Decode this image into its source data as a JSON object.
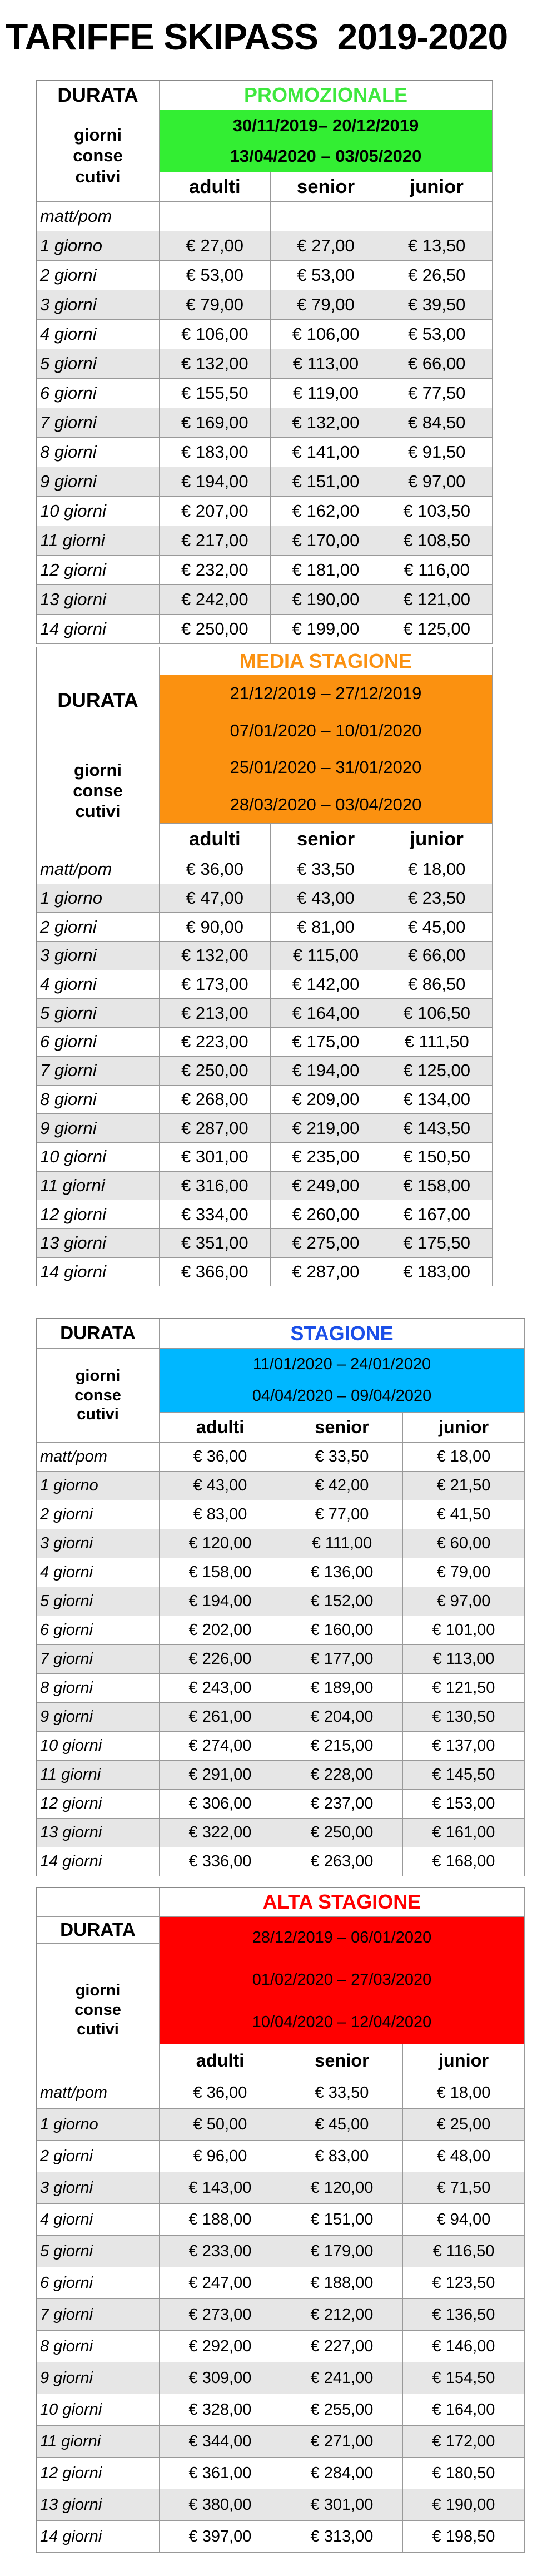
{
  "title": "TARIFFE SKIPASS  2019-2020",
  "common": {
    "durata": "DURATA",
    "giorni": [
      "giorni",
      "conse",
      "cutivi"
    ],
    "columns": [
      "adulti",
      "senior",
      "junior"
    ]
  },
  "tables": [
    {
      "season": "PROMOZIONALE",
      "color": "#33ee33",
      "season_color": "#3ee83e",
      "dates": [
        "30/11/2019– 20/12/2019",
        "13/04/2020 – 03/05/2020"
      ],
      "rows": [
        [
          "matt/pom",
          "",
          "",
          ""
        ],
        [
          "1 giorno",
          "€ 27,00",
          "€ 27,00",
          "€ 13,50"
        ],
        [
          "2 giorni",
          "€ 53,00",
          "€ 53,00",
          "€ 26,50"
        ],
        [
          "3 giorni",
          "€ 79,00",
          "€ 79,00",
          "€ 39,50"
        ],
        [
          "4 giorni",
          "€ 106,00",
          "€ 106,00",
          "€ 53,00"
        ],
        [
          "5 giorni",
          "€ 132,00",
          "€ 113,00",
          "€ 66,00"
        ],
        [
          "6 giorni",
          "€ 155,50",
          "€ 119,00",
          "€ 77,50"
        ],
        [
          "7 giorni",
          "€ 169,00",
          "€ 132,00",
          "€ 84,50"
        ],
        [
          "8 giorni",
          "€ 183,00",
          "€ 141,00",
          "€ 91,50"
        ],
        [
          "9 giorni",
          "€ 194,00",
          "€ 151,00",
          "€ 97,00"
        ],
        [
          "10 giorni",
          "€ 207,00",
          "€ 162,00",
          "€ 103,50"
        ],
        [
          "11 giorni",
          "€ 217,00",
          "€ 170,00",
          "€ 108,50"
        ],
        [
          "12 giorni",
          "€ 232,00",
          "€ 181,00",
          "€ 116,00"
        ],
        [
          "13 giorni",
          "€ 242,00",
          "€ 190,00",
          "€ 121,00"
        ],
        [
          "14 giorni",
          "€ 250,00",
          "€ 199,00",
          "€ 125,00"
        ]
      ]
    },
    {
      "season": "MEDIA STAGIONE",
      "color": "#fb9110",
      "season_color": "#fb9110",
      "dates": [
        "21/12/2019 – 27/12/2019",
        "07/01/2020 – 10/01/2020",
        "25/01/2020 – 31/01/2020",
        "28/03/2020 – 03/04/2020"
      ],
      "rows": [
        [
          "matt/pom",
          "€ 36,00",
          "€ 33,50",
          "€ 18,00"
        ],
        [
          "1 giorno",
          "€ 47,00",
          "€ 43,00",
          "€ 23,50"
        ],
        [
          "2 giorni",
          "€ 90,00",
          "€ 81,00",
          "€ 45,00"
        ],
        [
          "3 giorni",
          "€ 132,00",
          "€ 115,00",
          "€ 66,00"
        ],
        [
          "4 giorni",
          "€ 173,00",
          "€ 142,00",
          "€ 86,50"
        ],
        [
          "5 giorni",
          "€ 213,00",
          "€ 164,00",
          "€ 106,50"
        ],
        [
          "6 giorni",
          "€ 223,00",
          "€ 175,00",
          "€ 111,50"
        ],
        [
          "7 giorni",
          "€ 250,00",
          "€ 194,00",
          "€ 125,00"
        ],
        [
          "8 giorni",
          "€ 268,00",
          "€ 209,00",
          "€ 134,00"
        ],
        [
          "9 giorni",
          "€ 287,00",
          "€ 219,00",
          "€ 143,50"
        ],
        [
          "10 giorni",
          "€ 301,00",
          "€ 235,00",
          "€ 150,50"
        ],
        [
          "11 giorni",
          "€ 316,00",
          "€ 249,00",
          "€ 158,00"
        ],
        [
          "12 giorni",
          "€ 334,00",
          "€ 260,00",
          "€ 167,00"
        ],
        [
          "13 giorni",
          "€ 351,00",
          "€ 275,00",
          "€ 175,50"
        ],
        [
          "14 giorni",
          "€ 366,00",
          "€ 287,00",
          "€ 183,00"
        ]
      ]
    },
    {
      "season": "STAGIONE",
      "color": "#00b7ff",
      "season_color": "#1a4fe8",
      "dates": [
        "11/01/2020 – 24/01/2020",
        "04/04/2020 – 09/04/2020"
      ],
      "rows": [
        [
          "matt/pom",
          "€ 36,00",
          "€ 33,50",
          "€ 18,00"
        ],
        [
          "1 giorno",
          "€ 43,00",
          "€ 42,00",
          "€ 21,50"
        ],
        [
          "2 giorni",
          "€ 83,00",
          "€ 77,00",
          "€ 41,50"
        ],
        [
          "3 giorni",
          "€ 120,00",
          "€ 111,00",
          "€ 60,00"
        ],
        [
          "4 giorni",
          "€ 158,00",
          "€ 136,00",
          "€ 79,00"
        ],
        [
          "5 giorni",
          "€ 194,00",
          "€ 152,00",
          "€ 97,00"
        ],
        [
          "6 giorni",
          "€ 202,00",
          "€ 160,00",
          "€ 101,00"
        ],
        [
          "7 giorni",
          "€ 226,00",
          "€ 177,00",
          "€ 113,00"
        ],
        [
          "8 giorni",
          "€ 243,00",
          "€ 189,00",
          "€ 121,50"
        ],
        [
          "9 giorni",
          "€ 261,00",
          "€ 204,00",
          "€ 130,50"
        ],
        [
          "10 giorni",
          "€ 274,00",
          "€ 215,00",
          "€ 137,00"
        ],
        [
          "11 giorni",
          "€ 291,00",
          "€ 228,00",
          "€ 145,50"
        ],
        [
          "12 giorni",
          "€ 306,00",
          "€ 237,00",
          "€ 153,00"
        ],
        [
          "13 giorni",
          "€ 322,00",
          "€ 250,00",
          "€ 161,00"
        ],
        [
          "14 giorni",
          "€ 336,00",
          "€ 263,00",
          "€ 168,00"
        ]
      ]
    },
    {
      "season": "ALTA STAGIONE",
      "color": "#ff0000",
      "season_color": "#ff0000",
      "dates": [
        "28/12/2019 – 06/01/2020",
        "01/02/2020 – 27/03/2020",
        "10/04/2020 – 12/04/2020"
      ],
      "rows": [
        [
          "matt/pom",
          "€ 36,00",
          "€ 33,50",
          "€ 18,00"
        ],
        [
          "1 giorno",
          "€ 50,00",
          "€ 45,00",
          "€ 25,00"
        ],
        [
          "2 giorni",
          "€ 96,00",
          "€ 83,00",
          "€ 48,00"
        ],
        [
          "3 giorni",
          "€ 143,00",
          "€ 120,00",
          "€ 71,50"
        ],
        [
          "4 giorni",
          "€ 188,00",
          "€ 151,00",
          "€ 94,00"
        ],
        [
          "5 giorni",
          "€ 233,00",
          "€ 179,00",
          "€ 116,50"
        ],
        [
          "6 giorni",
          "€ 247,00",
          "€ 188,00",
          "€ 123,50"
        ],
        [
          "7 giorni",
          "€ 273,00",
          "€ 212,00",
          "€ 136,50"
        ],
        [
          "8 giorni",
          "€ 292,00",
          "€ 227,00",
          "€ 146,00"
        ],
        [
          "9 giorni",
          "€ 309,00",
          "€ 241,00",
          "€ 154,50"
        ],
        [
          "10 giorni",
          "€ 328,00",
          "€ 255,00",
          "€ 164,00"
        ],
        [
          "11 giorni",
          "€ 344,00",
          "€ 271,00",
          "€ 172,00"
        ],
        [
          "12 giorni",
          "€ 361,00",
          "€ 284,00",
          "€ 180,50"
        ],
        [
          "13 giorni",
          "€ 380,00",
          "€ 301,00",
          "€ 190,00"
        ],
        [
          "14 giorni",
          "€ 397,00",
          "€ 313,00",
          "€ 198,50"
        ]
      ]
    }
  ]
}
